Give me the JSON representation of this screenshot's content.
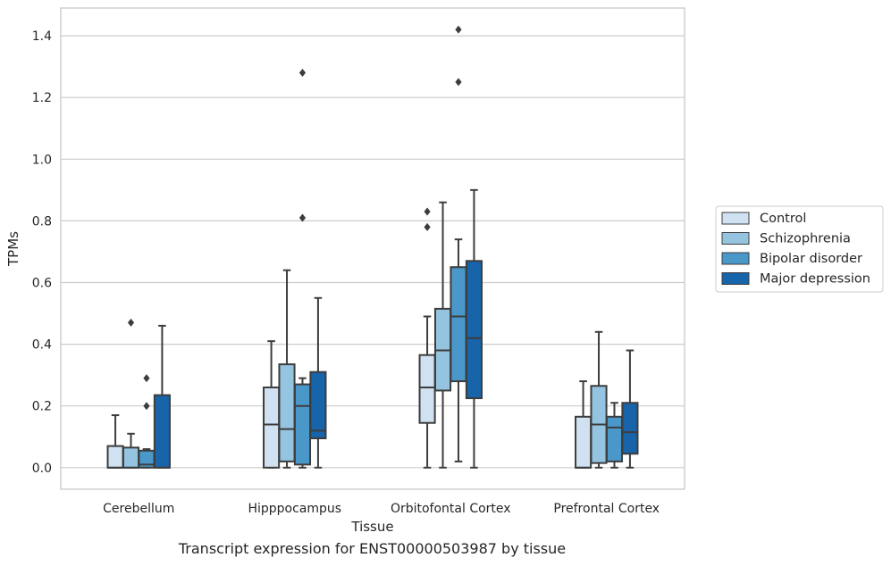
{
  "caption": "Transcript expression for ENST00000503987 by tissue",
  "chart_data": {
    "type": "box",
    "xlabel": "Tissue",
    "ylabel": "TPMs",
    "ylim": [
      -0.07,
      1.49
    ],
    "yticks": [
      0.0,
      0.2,
      0.4,
      0.6,
      0.8,
      1.0,
      1.2,
      1.4
    ],
    "ytick_labels": [
      "0.0",
      "0.2",
      "0.4",
      "0.6",
      "0.8",
      "1.0",
      "1.2",
      "1.4"
    ],
    "grid": "horizontal",
    "legend_position": "right",
    "categories": [
      "Cerebellum",
      "Hipppocampus",
      "Orbitofontal Cortex",
      "Prefrontal Cortex"
    ],
    "series": [
      {
        "name": "Control",
        "color": "#d0e1f2",
        "boxes": [
          {
            "whislo": 0.0,
            "q1": 0.0,
            "med": 0.0,
            "q3": 0.07,
            "whishi": 0.17,
            "fliers": []
          },
          {
            "whislo": 0.0,
            "q1": 0.0,
            "med": 0.14,
            "q3": 0.26,
            "whishi": 0.41,
            "fliers": []
          },
          {
            "whislo": 0.0,
            "q1": 0.145,
            "med": 0.26,
            "q3": 0.365,
            "whishi": 0.49,
            "fliers": [
              0.78,
              0.83
            ]
          },
          {
            "whislo": 0.0,
            "q1": 0.0,
            "med": 0.0,
            "q3": 0.165,
            "whishi": 0.28,
            "fliers": []
          }
        ]
      },
      {
        "name": "Schizophrenia",
        "color": "#94c4df",
        "boxes": [
          {
            "whislo": 0.0,
            "q1": 0.0,
            "med": 0.0,
            "q3": 0.065,
            "whishi": 0.11,
            "fliers": [
              0.47
            ]
          },
          {
            "whislo": 0.0,
            "q1": 0.02,
            "med": 0.125,
            "q3": 0.335,
            "whishi": 0.64,
            "fliers": []
          },
          {
            "whislo": 0.0,
            "q1": 0.25,
            "med": 0.38,
            "q3": 0.515,
            "whishi": 0.86,
            "fliers": []
          },
          {
            "whislo": 0.0,
            "q1": 0.015,
            "med": 0.14,
            "q3": 0.265,
            "whishi": 0.44,
            "fliers": []
          }
        ]
      },
      {
        "name": "Bipolar disorder",
        "color": "#4a98c9",
        "boxes": [
          {
            "whislo": 0.0,
            "q1": 0.0,
            "med": 0.01,
            "q3": 0.055,
            "whishi": 0.06,
            "fliers": [
              0.2,
              0.29
            ]
          },
          {
            "whislo": 0.0,
            "q1": 0.01,
            "med": 0.2,
            "q3": 0.27,
            "whishi": 0.29,
            "fliers": [
              0.81,
              1.28
            ]
          },
          {
            "whislo": 0.02,
            "q1": 0.28,
            "med": 0.49,
            "q3": 0.65,
            "whishi": 0.74,
            "fliers": [
              1.25,
              1.42
            ]
          },
          {
            "whislo": 0.0,
            "q1": 0.02,
            "med": 0.13,
            "q3": 0.165,
            "whishi": 0.21,
            "fliers": []
          }
        ]
      },
      {
        "name": "Major depression",
        "color": "#1764ab",
        "boxes": [
          {
            "whislo": 0.0,
            "q1": 0.0,
            "med": 0.0,
            "q3": 0.235,
            "whishi": 0.46,
            "fliers": []
          },
          {
            "whislo": 0.0,
            "q1": 0.095,
            "med": 0.12,
            "q3": 0.31,
            "whishi": 0.55,
            "fliers": []
          },
          {
            "whislo": 0.0,
            "q1": 0.225,
            "med": 0.42,
            "q3": 0.67,
            "whishi": 0.9,
            "fliers": []
          },
          {
            "whislo": 0.0,
            "q1": 0.045,
            "med": 0.115,
            "q3": 0.21,
            "whishi": 0.38,
            "fliers": []
          }
        ]
      }
    ]
  },
  "colors": {
    "background": "#ffffff",
    "grid": "#cccccc",
    "box_edge": "#3d3d3d",
    "text": "#262626"
  }
}
